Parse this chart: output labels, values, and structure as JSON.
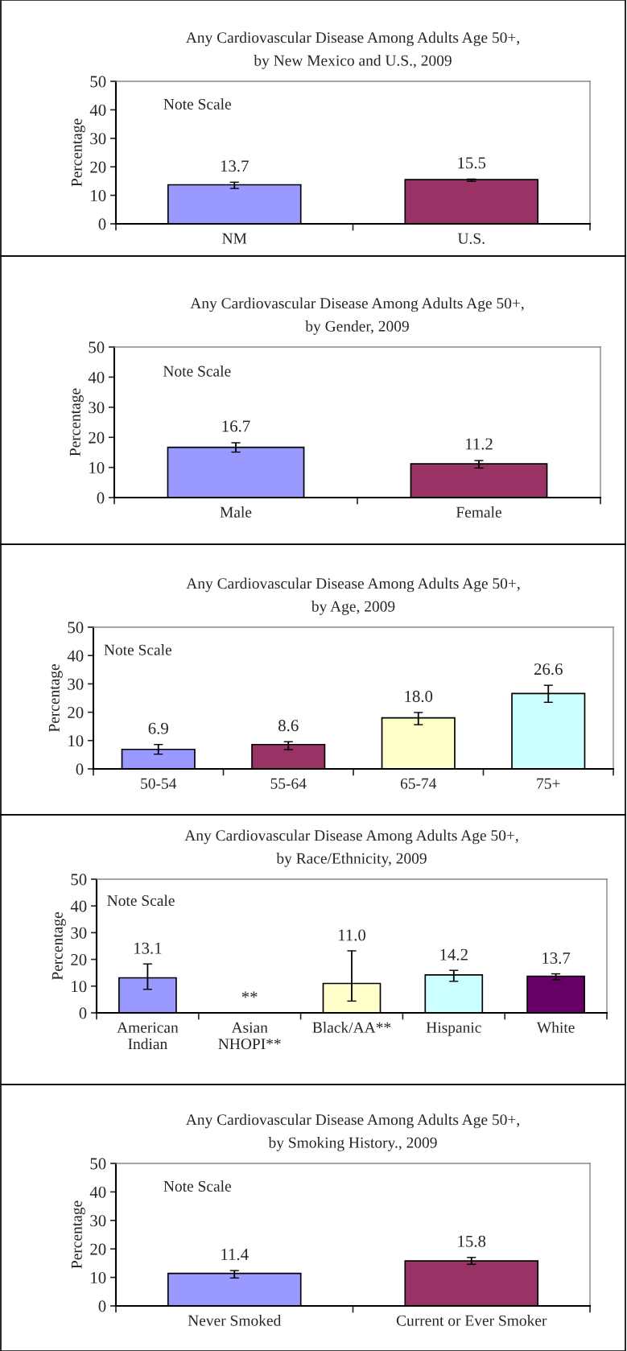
{
  "chart_data": [
    {
      "type": "bar",
      "title": "Any Cardiovascular Disease Among Adults Age 50+,\nby New Mexico and U.S., 2009",
      "ylabel": "Percentage",
      "categories": [
        "NM",
        "U.S."
      ],
      "values": [
        13.7,
        15.5
      ],
      "colors": [
        "#9999ff",
        "#993366"
      ],
      "errors": [
        [
          12.4,
          14.6
        ],
        [
          14.9,
          15.7
        ]
      ],
      "ylim": [
        0,
        50
      ],
      "yticks": [
        0,
        10,
        20,
        30,
        40,
        50
      ],
      "data_labels": true,
      "grid": false,
      "legend": false,
      "annotations": [
        "Note Scale"
      ]
    },
    {
      "type": "bar",
      "title": "Any Cardiovascular Disease Among Adults Age 50+,\nby Gender, 2009",
      "ylabel": "Percentage",
      "categories": [
        "Male",
        "Female"
      ],
      "values": [
        16.7,
        11.2
      ],
      "colors": [
        "#9999ff",
        "#993366"
      ],
      "errors": [
        [
          15.1,
          18.2
        ],
        [
          9.8,
          12.3
        ]
      ],
      "ylim": [
        0,
        50
      ],
      "yticks": [
        0,
        10,
        20,
        30,
        40,
        50
      ],
      "data_labels": true,
      "grid": false,
      "legend": false,
      "annotations": [
        "Note Scale"
      ]
    },
    {
      "type": "bar",
      "title": "Any Cardiovascular Disease Among Adults Age 50+,\nby Age, 2009",
      "ylabel": "Percentage",
      "categories": [
        "50-54",
        "55-64",
        "65-74",
        "75+"
      ],
      "values": [
        6.9,
        8.6,
        18.0,
        26.6
      ],
      "colors": [
        "#9999ff",
        "#993366",
        "#ffffcc",
        "#ccffff"
      ],
      "errors": [
        [
          5.2,
          8.6
        ],
        [
          6.8,
          9.6
        ],
        [
          15.6,
          19.9
        ],
        [
          23.5,
          29.5
        ]
      ],
      "value_labels": [
        "6.9",
        "8.6",
        "18.0",
        "26.6"
      ],
      "ylim": [
        0,
        50
      ],
      "yticks": [
        0,
        10,
        20,
        30,
        40,
        50
      ],
      "grid": false,
      "legend": false,
      "annotations": [
        "Note Scale"
      ]
    },
    {
      "type": "bar",
      "title": "Any Cardiovascular Disease Among Adults Age 50+,\nby Race/Ethnicity, 2009",
      "ylabel": "Percentage",
      "categories": [
        "American\nIndian",
        "Asian\nNHOPI**",
        "Black/AA**",
        "Hispanic",
        "White"
      ],
      "values": [
        13.1,
        null,
        11.0,
        14.2,
        13.7
      ],
      "colors": [
        "#9999ff",
        "#993366",
        "#ffffcc",
        "#ccffff",
        "#660066"
      ],
      "errors": [
        [
          8.8,
          18.3
        ],
        null,
        [
          4.4,
          23.2
        ],
        [
          11.8,
          15.9
        ],
        [
          12.4,
          14.6
        ]
      ],
      "value_labels": [
        "13.1",
        "**",
        "11.0",
        "14.2",
        "13.7"
      ],
      "ylim": [
        0,
        50
      ],
      "yticks": [
        0,
        10,
        20,
        30,
        40,
        50
      ],
      "grid": false,
      "legend": false,
      "annotations": [
        "Note Scale"
      ]
    },
    {
      "type": "bar",
      "title": "Any Cardiovascular Disease Among Adults Age 50+,\nby Smoking History., 2009",
      "ylabel": "Percentage",
      "categories": [
        "Never Smoked",
        "Current or Ever Smoker"
      ],
      "values": [
        11.4,
        15.8
      ],
      "colors": [
        "#9999ff",
        "#993366"
      ],
      "errors": [
        [
          9.8,
          12.4
        ],
        [
          14.6,
          17.0
        ]
      ],
      "ylim": [
        0,
        50
      ],
      "yticks": [
        0,
        10,
        20,
        30,
        40,
        50
      ],
      "data_labels": true,
      "grid": false,
      "legend": false,
      "annotations": [
        "Note Scale"
      ]
    }
  ]
}
